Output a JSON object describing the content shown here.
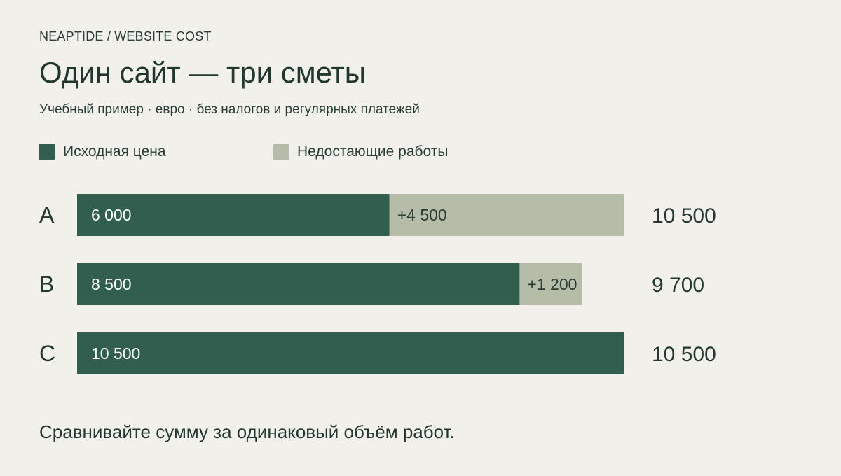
{
  "brand": "NEAPTIDE / WEBSITE COST",
  "title": "Один сайт — три сметы",
  "subtitle": "Учебный пример · евро · без налогов и регулярных платежей",
  "footer": "Сравнивайте сумму за одинаковый объём работ.",
  "colors": {
    "base": "#325e50",
    "extra": "#b5bda8",
    "text": "#24392f",
    "background": "#f2f0ea"
  },
  "chart_data": {
    "type": "bar",
    "orientation": "horizontal",
    "stacked": true,
    "title": "Один сайт — три сметы",
    "subtitle": "Учебный пример · евро · без налогов и регулярных платежей",
    "categories": [
      "A",
      "B",
      "C"
    ],
    "series": [
      {
        "name": "Исходная цена",
        "values": [
          6000,
          8500,
          10500
        ],
        "labels": [
          "6 000",
          "8 500",
          "10 500"
        ],
        "color": "#325e50"
      },
      {
        "name": "Недостающие работы",
        "values": [
          4500,
          1200,
          0
        ],
        "labels": [
          "+4 500",
          "+1 200",
          ""
        ],
        "color": "#b5bda8"
      }
    ],
    "totals": [
      10500,
      9700,
      10500
    ],
    "total_labels": [
      "10 500",
      "9 700",
      "10 500"
    ],
    "xlim": [
      0,
      10500
    ],
    "grid": false,
    "legend": "top-left"
  }
}
